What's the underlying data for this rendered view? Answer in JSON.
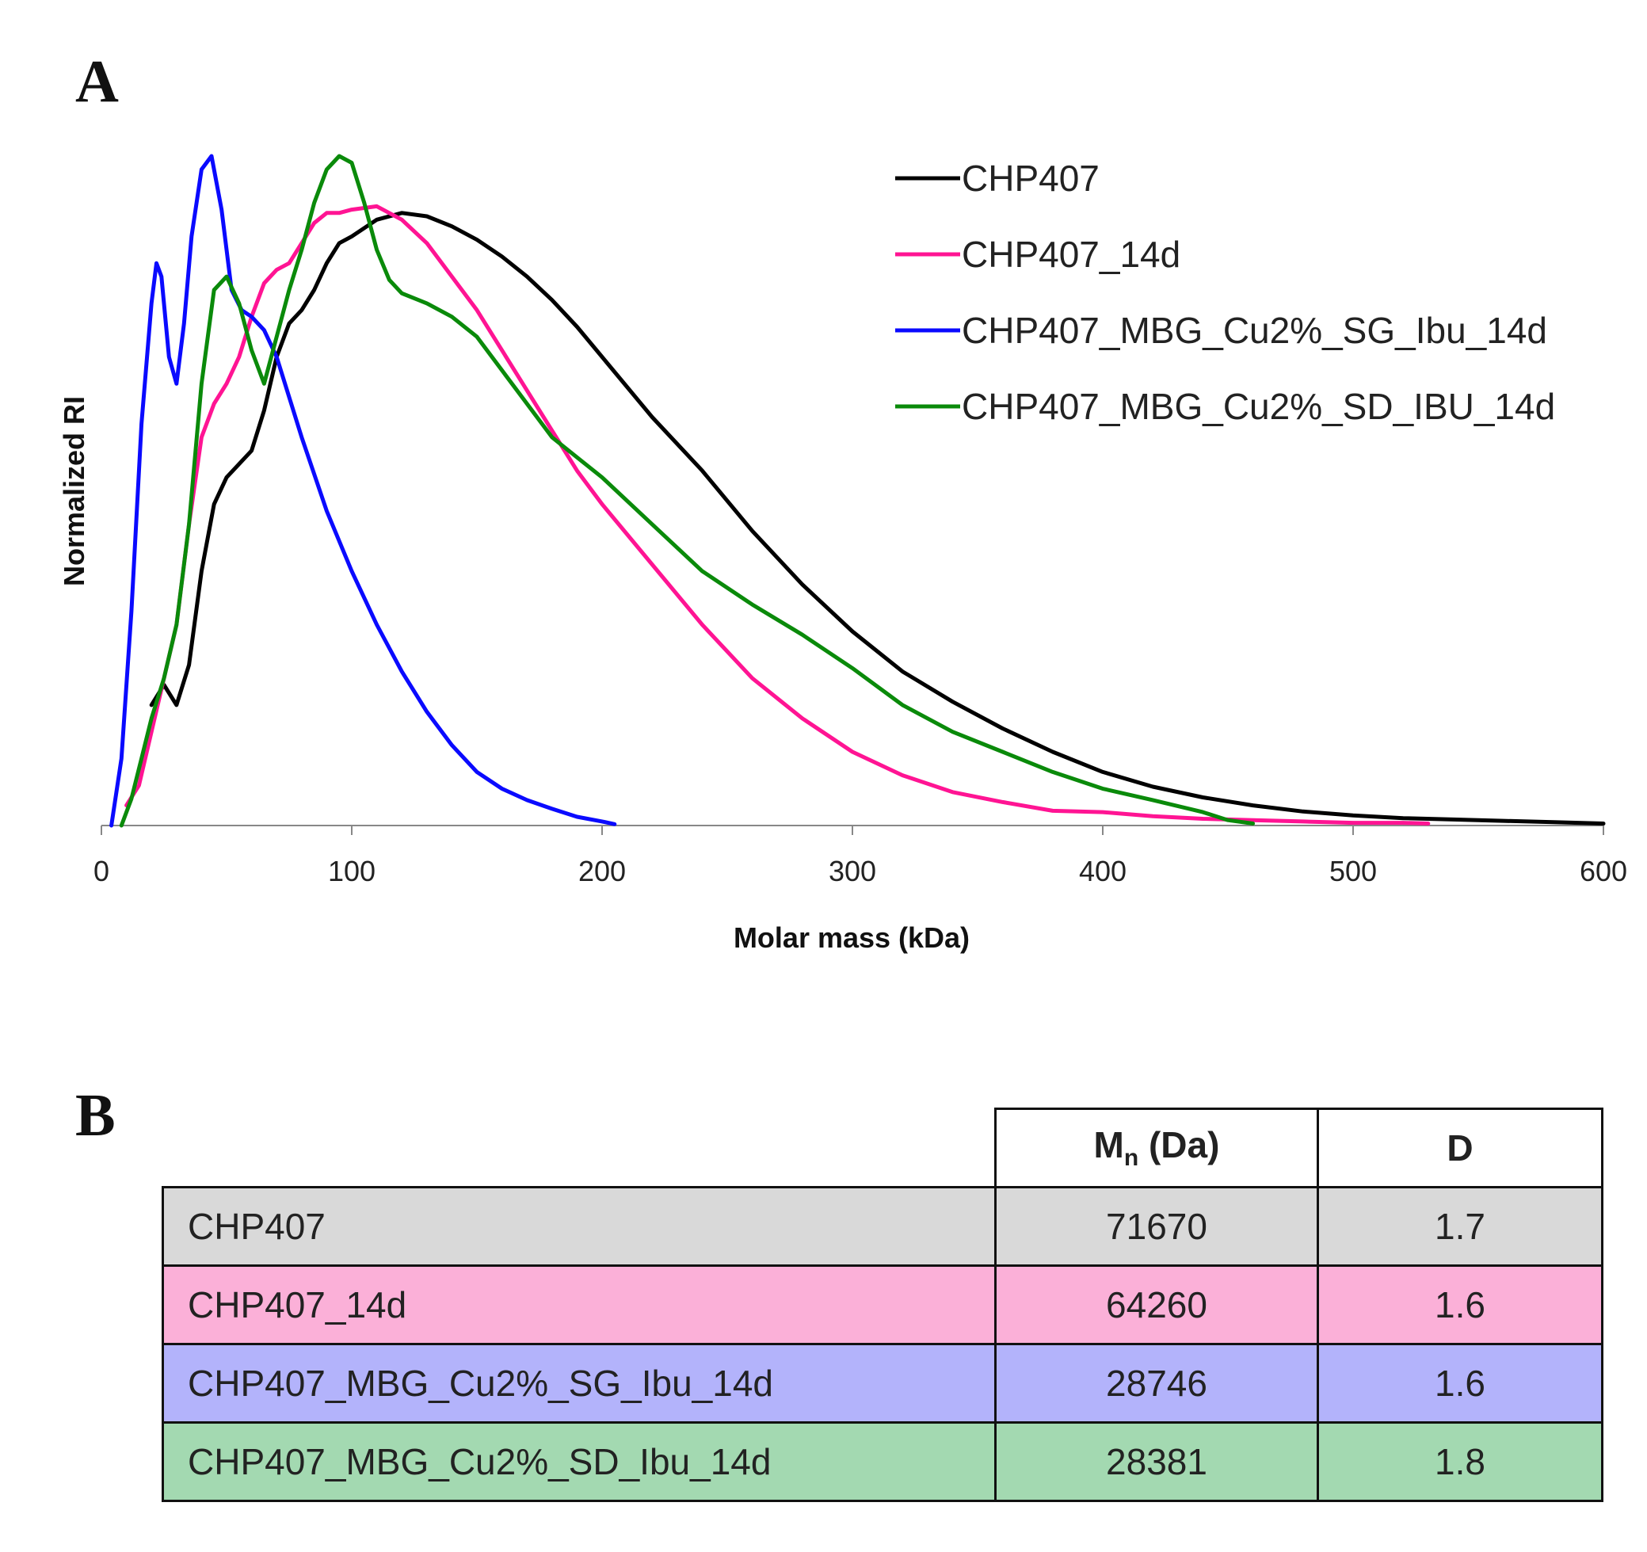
{
  "panel_a_label": "A",
  "panel_b_label": "B",
  "chart_data": {
    "type": "line",
    "title": "",
    "xlabel": "Molar mass (kDa)",
    "ylabel": "Normalized RI",
    "xlim": [
      0,
      600
    ],
    "ylim": [
      0,
      1.0
    ],
    "x_ticks": [
      "0",
      "100",
      "200",
      "300",
      "400",
      "500",
      "600"
    ],
    "grid": false,
    "legend_position": "top-right",
    "series": [
      {
        "name": "CHP407",
        "color": "#000000",
        "x": [
          20,
          25,
          30,
          35,
          40,
          45,
          50,
          55,
          60,
          65,
          70,
          75,
          80,
          85,
          90,
          95,
          100,
          110,
          120,
          130,
          140,
          150,
          160,
          170,
          180,
          190,
          200,
          220,
          240,
          260,
          280,
          300,
          320,
          340,
          360,
          380,
          400,
          420,
          440,
          460,
          480,
          500,
          520,
          540,
          560,
          580,
          600
        ],
        "y": [
          0.18,
          0.21,
          0.18,
          0.24,
          0.38,
          0.48,
          0.52,
          0.54,
          0.56,
          0.62,
          0.7,
          0.75,
          0.77,
          0.8,
          0.84,
          0.87,
          0.88,
          0.905,
          0.915,
          0.91,
          0.895,
          0.875,
          0.85,
          0.82,
          0.785,
          0.745,
          0.7,
          0.61,
          0.53,
          0.44,
          0.36,
          0.29,
          0.23,
          0.185,
          0.145,
          0.11,
          0.08,
          0.058,
          0.042,
          0.03,
          0.021,
          0.015,
          0.011,
          0.009,
          0.007,
          0.005,
          0.003
        ]
      },
      {
        "name": "CHP407_14d",
        "color": "#ff1493",
        "x": [
          10,
          15,
          20,
          25,
          30,
          35,
          40,
          45,
          50,
          55,
          60,
          65,
          70,
          75,
          80,
          85,
          90,
          95,
          100,
          110,
          120,
          130,
          140,
          150,
          160,
          170,
          180,
          190,
          200,
          220,
          240,
          260,
          280,
          300,
          320,
          340,
          360,
          380,
          400,
          420,
          440,
          460,
          480,
          500,
          520,
          530
        ],
        "y": [
          0.03,
          0.06,
          0.14,
          0.22,
          0.3,
          0.45,
          0.58,
          0.63,
          0.66,
          0.7,
          0.76,
          0.81,
          0.83,
          0.84,
          0.87,
          0.9,
          0.915,
          0.915,
          0.92,
          0.925,
          0.905,
          0.87,
          0.82,
          0.77,
          0.71,
          0.65,
          0.59,
          0.53,
          0.48,
          0.39,
          0.3,
          0.22,
          0.16,
          0.11,
          0.075,
          0.05,
          0.035,
          0.022,
          0.02,
          0.014,
          0.01,
          0.008,
          0.006,
          0.004,
          0.004,
          0.003
        ]
      },
      {
        "name": "CHP407_MBG_Cu2%_SG_Ibu_14d",
        "color": "#0a0aff",
        "x": [
          4,
          8,
          12,
          16,
          20,
          22,
          24,
          27,
          30,
          33,
          36,
          40,
          44,
          48,
          52,
          56,
          60,
          65,
          70,
          75,
          80,
          90,
          100,
          110,
          120,
          130,
          140,
          150,
          160,
          170,
          180,
          190,
          200,
          205
        ],
        "y": [
          0.0,
          0.1,
          0.32,
          0.6,
          0.78,
          0.84,
          0.82,
          0.7,
          0.66,
          0.75,
          0.88,
          0.98,
          1.0,
          0.92,
          0.8,
          0.77,
          0.76,
          0.74,
          0.7,
          0.64,
          0.58,
          0.47,
          0.38,
          0.3,
          0.23,
          0.17,
          0.12,
          0.08,
          0.055,
          0.038,
          0.025,
          0.013,
          0.006,
          0.002
        ]
      },
      {
        "name": "CHP407_MBG_Cu2%_SD_IBU_14d",
        "color": "#0a8a0a",
        "x": [
          8,
          12,
          16,
          20,
          25,
          30,
          35,
          40,
          45,
          50,
          55,
          60,
          65,
          70,
          75,
          80,
          85,
          90,
          95,
          100,
          105,
          110,
          115,
          120,
          130,
          140,
          150,
          160,
          170,
          180,
          190,
          200,
          220,
          240,
          260,
          280,
          300,
          320,
          340,
          360,
          380,
          400,
          420,
          440,
          450,
          460
        ],
        "y": [
          0.0,
          0.04,
          0.1,
          0.16,
          0.22,
          0.3,
          0.45,
          0.66,
          0.8,
          0.82,
          0.78,
          0.71,
          0.66,
          0.73,
          0.8,
          0.86,
          0.93,
          0.98,
          1.0,
          0.99,
          0.93,
          0.86,
          0.815,
          0.795,
          0.78,
          0.76,
          0.73,
          0.68,
          0.63,
          0.58,
          0.55,
          0.52,
          0.45,
          0.38,
          0.33,
          0.285,
          0.235,
          0.18,
          0.14,
          0.11,
          0.08,
          0.055,
          0.038,
          0.02,
          0.008,
          0.003
        ]
      }
    ]
  },
  "table": {
    "headers": {
      "mn_main": "M",
      "mn_sub": "n",
      "mn_unit": " (Da)",
      "d": "D"
    },
    "rows": [
      {
        "name": "CHP407",
        "mn": "71670",
        "d": "1.7",
        "bg": "#d9d9d9"
      },
      {
        "name": "CHP407_14d",
        "mn": "64260",
        "d": "1.6",
        "bg": "#fbb0d8"
      },
      {
        "name": "CHP407_MBG_Cu2%_SG_Ibu_14d",
        "mn": "28746",
        "d": "1.6",
        "bg": "#b3b3fb"
      },
      {
        "name": "CHP407_MBG_Cu2%_SD_Ibu_14d",
        "mn": "28381",
        "d": "1.8",
        "bg": "#a3d9b1"
      }
    ]
  }
}
